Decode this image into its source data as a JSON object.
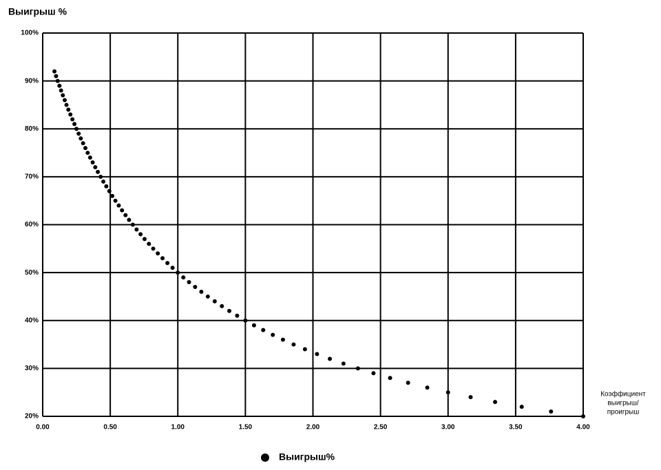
{
  "chart_data": {
    "type": "scatter",
    "y_axis_title": "Выигрыш %",
    "x_axis_title": [
      "Коэффициент",
      "выигрыш/",
      "проигрыш"
    ],
    "xlim": [
      0,
      4
    ],
    "ylim": [
      20,
      100
    ],
    "xticks": [
      {
        "value": 0,
        "label": "0.00"
      },
      {
        "value": 0.5,
        "label": "0.50"
      },
      {
        "value": 1,
        "label": "1.00"
      },
      {
        "value": 1.5,
        "label": "1.50"
      },
      {
        "value": 2,
        "label": "2.00"
      },
      {
        "value": 2.5,
        "label": "2.50"
      },
      {
        "value": 3,
        "label": "3.00"
      },
      {
        "value": 3.5,
        "label": "3.50"
      },
      {
        "value": 4,
        "label": "4.00"
      }
    ],
    "yticks": [
      {
        "value": 20,
        "label": "20%"
      },
      {
        "value": 30,
        "label": "30%"
      },
      {
        "value": 40,
        "label": "40%"
      },
      {
        "value": 50,
        "label": "50%"
      },
      {
        "value": 60,
        "label": "60%"
      },
      {
        "value": 70,
        "label": "70%"
      },
      {
        "value": 80,
        "label": "80%"
      },
      {
        "value": 90,
        "label": "90%"
      },
      {
        "value": 100,
        "label": "100%"
      }
    ],
    "grid": true,
    "legend": "bottom",
    "series": [
      {
        "name": "Выигрыш%",
        "color": "#000000",
        "x": [
          0.087,
          0.099,
          0.111,
          0.124,
          0.136,
          0.149,
          0.163,
          0.176,
          0.19,
          0.205,
          0.22,
          0.235,
          0.25,
          0.266,
          0.282,
          0.299,
          0.316,
          0.333,
          0.351,
          0.37,
          0.389,
          0.408,
          0.429,
          0.449,
          0.471,
          0.493,
          0.515,
          0.538,
          0.563,
          0.587,
          0.613,
          0.639,
          0.667,
          0.695,
          0.724,
          0.754,
          0.786,
          0.818,
          0.852,
          0.887,
          0.923,
          0.961,
          1,
          1.041,
          1.083,
          1.128,
          1.174,
          1.222,
          1.273,
          1.326,
          1.381,
          1.439,
          1.5,
          1.564,
          1.632,
          1.703,
          1.778,
          1.857,
          1.941,
          2.03,
          2.125,
          2.226,
          2.333,
          2.448,
          2.571,
          2.704,
          2.846,
          3,
          3.167,
          3.348,
          3.545,
          3.762,
          4
        ],
        "values": [
          92,
          91,
          90,
          89,
          88,
          87,
          86,
          85,
          84,
          83,
          82,
          81,
          80,
          79,
          78,
          77,
          76,
          75,
          74,
          73,
          72,
          71,
          70,
          69,
          68,
          67,
          66,
          65,
          64,
          63,
          62,
          61,
          60,
          59,
          58,
          57,
          56,
          55,
          54,
          53,
          52,
          51,
          50,
          49,
          48,
          47,
          46,
          45,
          44,
          43,
          42,
          41,
          40,
          39,
          38,
          37,
          36,
          35,
          34,
          33,
          32,
          31,
          30,
          29,
          28,
          27,
          26,
          25,
          24,
          23,
          22,
          21,
          20
        ]
      }
    ]
  }
}
